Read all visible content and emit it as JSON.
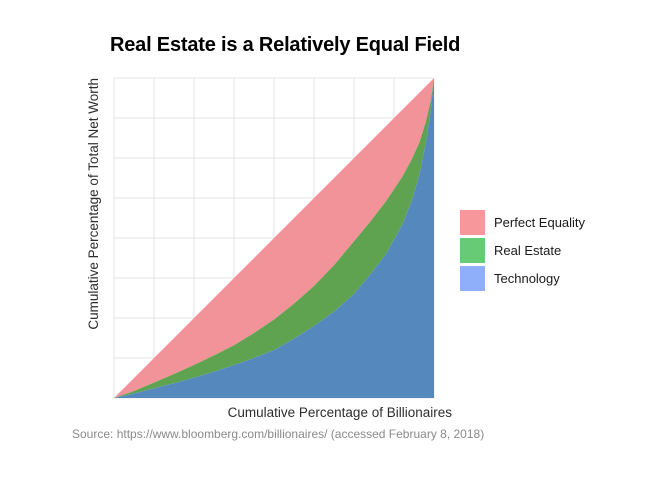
{
  "title": "Real Estate is a Relatively Equal Field",
  "caption": "Source: https://www.bloomberg.com/billionaires/ (accessed February 8, 2018)",
  "legend": {
    "items": [
      {
        "label": "Perfect Equality",
        "swatch": "#F8979B"
      },
      {
        "label": "Real Estate",
        "swatch": "#67CB75"
      },
      {
        "label": "Technology",
        "swatch": "#90AFFB"
      }
    ]
  },
  "chart_data": {
    "type": "area",
    "title": "Real Estate is a Relatively Equal Field",
    "xlabel": "Cumulative Percentage of Billionaires",
    "ylabel": "Cumulative Percentage of Total Net Worth",
    "xlim": [
      0,
      100
    ],
    "ylim": [
      0,
      100
    ],
    "grid": true,
    "grid_breaks": [
      0,
      12.5,
      25,
      37.5,
      50,
      62.5,
      75,
      87.5,
      100
    ],
    "grid_color": "#E4E4E4",
    "tick_labels_shown": false,
    "legend_position": "right",
    "caption_color": "#8A8A8A",
    "note": "Lorenz curves: cumulative % of billionaires vs cumulative % of total net worth. Bands filled between successive curves.",
    "series": [
      {
        "name": "Perfect Equality",
        "fill": "#F2939A",
        "x": [
          0,
          100
        ],
        "y": [
          0,
          100
        ]
      },
      {
        "name": "Real Estate",
        "fill": "#5FA351",
        "x": [
          0,
          6.25,
          12.5,
          18.75,
          25,
          31.25,
          37.5,
          43.75,
          50,
          56.25,
          62.5,
          68.75,
          75,
          80,
          85,
          90,
          93,
          95.5,
          97.5,
          99,
          100
        ],
        "y": [
          0,
          2.2,
          4.8,
          7.5,
          10.3,
          13.3,
          16.5,
          20.3,
          24.5,
          29.5,
          35,
          41.5,
          49,
          55,
          61.5,
          69,
          74.5,
          80,
          86.5,
          93,
          100
        ]
      },
      {
        "name": "Technology",
        "fill": "#5589BD",
        "x": [
          0,
          6.25,
          12.5,
          18.75,
          25,
          31.25,
          37.5,
          43.75,
          50,
          56.25,
          62.5,
          68.75,
          75,
          80,
          85,
          90,
          93,
          95.5,
          97.5,
          99,
          100
        ],
        "y": [
          0,
          1.4,
          3.0,
          4.6,
          6.3,
          8.2,
          10.3,
          12.5,
          15,
          18.5,
          22.5,
          27,
          32.5,
          38.5,
          45,
          54,
          61.5,
          70,
          80,
          90,
          100
        ]
      }
    ]
  }
}
